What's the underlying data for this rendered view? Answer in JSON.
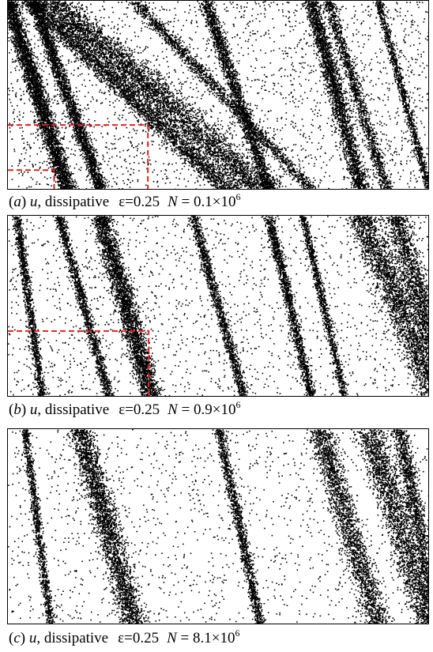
{
  "chart_data": [
    {
      "type": "scatter",
      "caption": {
        "label": "a",
        "variable": "u",
        "kind": "dissipative",
        "eps_symbol": "ε",
        "eps_value": "=0.25",
        "n_symbol": "N",
        "n_value": " = 0.1×10",
        "n_exp": "6"
      },
      "density": 1.0,
      "bands": [
        {
          "x_top": 0.0,
          "x_bottom": 0.14,
          "width": 0.02,
          "strength": 2.6
        },
        {
          "x_top": 0.06,
          "x_bottom": 0.22,
          "width": 0.016,
          "strength": 1.8
        },
        {
          "x_top": 0.1,
          "x_bottom": 0.6,
          "width": 0.06,
          "strength": 3.2
        },
        {
          "x_top": 0.05,
          "x_bottom": 0.52,
          "width": 0.03,
          "strength": 2.0
        },
        {
          "x_top": 0.3,
          "x_bottom": 0.72,
          "width": 0.02,
          "strength": 1.2
        },
        {
          "x_top": 0.47,
          "x_bottom": 0.62,
          "width": 0.016,
          "strength": 1.5
        },
        {
          "x_top": 0.72,
          "x_bottom": 0.84,
          "width": 0.02,
          "strength": 1.8
        },
        {
          "x_top": 0.76,
          "x_bottom": 0.9,
          "width": 0.014,
          "strength": 1.0
        },
        {
          "x_top": 0.88,
          "x_bottom": 1.0,
          "width": 0.01,
          "strength": 0.8
        }
      ],
      "inset_boxes": [
        {
          "x1": 0.0,
          "y1": 0.66,
          "x2": 0.333,
          "y2": 1.0
        },
        {
          "x1": 0.0,
          "y1": 0.9,
          "x2": 0.11,
          "y2": 1.0
        }
      ]
    },
    {
      "type": "scatter",
      "caption": {
        "label": "b",
        "variable": "u",
        "kind": "dissipative",
        "eps_symbol": "ε",
        "eps_value": "=0.25",
        "n_symbol": "N",
        "n_value": " = 0.9×10",
        "n_exp": "6"
      },
      "density": 0.65,
      "bands": [
        {
          "x_top": 0.22,
          "x_bottom": 0.34,
          "width": 0.024,
          "strength": 2.2
        },
        {
          "x_top": 0.12,
          "x_bottom": 0.24,
          "width": 0.012,
          "strength": 1.0
        },
        {
          "x_top": 0.02,
          "x_bottom": 0.08,
          "width": 0.01,
          "strength": 0.9
        },
        {
          "x_top": 0.44,
          "x_bottom": 0.56,
          "width": 0.012,
          "strength": 1.0
        },
        {
          "x_top": 0.62,
          "x_bottom": 0.72,
          "width": 0.012,
          "strength": 1.1
        },
        {
          "x_top": 0.7,
          "x_bottom": 0.8,
          "width": 0.01,
          "strength": 0.8
        },
        {
          "x_top": 0.84,
          "x_bottom": 1.02,
          "width": 0.04,
          "strength": 2.0
        },
        {
          "x_top": 0.92,
          "x_bottom": 1.05,
          "width": 0.03,
          "strength": 1.6
        }
      ],
      "inset_boxes": [
        {
          "x1": 0.0,
          "y1": 0.64,
          "x2": 0.335,
          "y2": 1.0
        }
      ]
    },
    {
      "type": "scatter",
      "caption": {
        "label": "c",
        "variable": "u",
        "kind": "dissipative",
        "eps_symbol": "ε",
        "eps_value": "=0.25",
        "n_symbol": "N",
        "n_value": " = 8.1×10",
        "n_exp": "6"
      },
      "density": 0.55,
      "bands": [
        {
          "x_top": 0.17,
          "x_bottom": 0.3,
          "width": 0.03,
          "strength": 2.0
        },
        {
          "x_top": 0.04,
          "x_bottom": 0.1,
          "width": 0.01,
          "strength": 0.8
        },
        {
          "x_top": 0.5,
          "x_bottom": 0.6,
          "width": 0.012,
          "strength": 1.0
        },
        {
          "x_top": 0.74,
          "x_bottom": 0.88,
          "width": 0.03,
          "strength": 1.6
        },
        {
          "x_top": 0.86,
          "x_bottom": 1.0,
          "width": 0.035,
          "strength": 1.7
        },
        {
          "x_top": 0.93,
          "x_bottom": 1.02,
          "width": 0.02,
          "strength": 1.2
        }
      ],
      "inset_boxes": []
    }
  ],
  "colors": {
    "points": "#000000",
    "inset_box": "#e02020"
  }
}
